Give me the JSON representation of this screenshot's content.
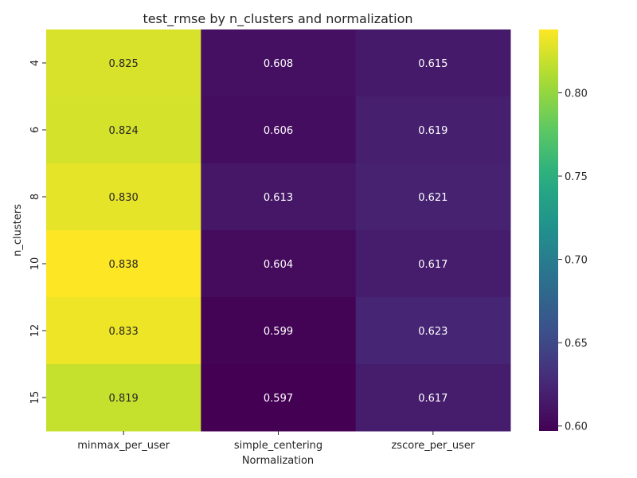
{
  "chart_data": {
    "type": "heatmap",
    "title": "test_rmse by n_clusters and normalization",
    "xlabel": "Normalization",
    "ylabel": "n_clusters",
    "columns": [
      "minmax_per_user",
      "simple_centering",
      "zscore_per_user"
    ],
    "rows": [
      "4",
      "6",
      "8",
      "10",
      "12",
      "15"
    ],
    "values": [
      [
        0.825,
        0.608,
        0.615
      ],
      [
        0.824,
        0.606,
        0.619
      ],
      [
        0.83,
        0.613,
        0.621
      ],
      [
        0.838,
        0.604,
        0.617
      ],
      [
        0.833,
        0.599,
        0.623
      ],
      [
        0.819,
        0.597,
        0.617
      ]
    ],
    "labels": [
      [
        "0.825",
        "0.608",
        "0.615"
      ],
      [
        "0.824",
        "0.606",
        "0.619"
      ],
      [
        "0.830",
        "0.613",
        "0.621"
      ],
      [
        "0.838",
        "0.604",
        "0.617"
      ],
      [
        "0.833",
        "0.599",
        "0.623"
      ],
      [
        "0.819",
        "0.597",
        "0.617"
      ]
    ],
    "colormap": "viridis",
    "color_range": [
      0.597,
      0.838
    ],
    "colorbar_ticks": [
      {
        "value": 0.6,
        "label": "0.60"
      },
      {
        "value": 0.65,
        "label": "0.65"
      },
      {
        "value": 0.7,
        "label": "0.70"
      },
      {
        "value": 0.75,
        "label": "0.75"
      },
      {
        "value": 0.8,
        "label": "0.80"
      }
    ]
  }
}
